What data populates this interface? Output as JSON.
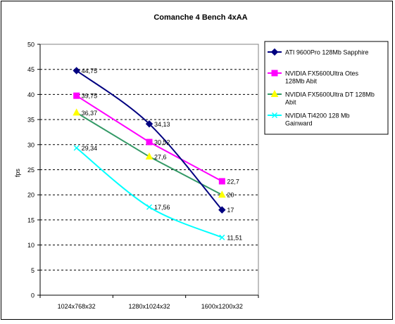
{
  "chart_data": {
    "type": "line",
    "title": "Comanche 4 Bench 4xAA",
    "ylabel": "fps",
    "xlabel": "",
    "categories": [
      "1024x768x32",
      "1280x1024x32",
      "1600x1200x32"
    ],
    "ylim": [
      0,
      50
    ],
    "yticks": [
      "0",
      "5",
      "10",
      "15",
      "20",
      "25",
      "30",
      "35",
      "40",
      "45",
      "50"
    ],
    "grid": "horizontal dashed",
    "legend_position": "right",
    "series": [
      {
        "name": "ATI 9600Pro 128Mb Sapphire",
        "values": [
          44.75,
          34.13,
          17
        ],
        "labels": [
          "44,75",
          "34,13",
          "17"
        ],
        "color": "#000080",
        "marker": "diamond",
        "smooth": true
      },
      {
        "name": "NVIDIA FX5600Ultra Otes 128Mb Abit",
        "values": [
          39.75,
          30.52,
          22.7
        ],
        "labels": [
          "39,75",
          "30,52",
          "22,7"
        ],
        "color": "#ff00ff",
        "marker": "square",
        "smooth": false
      },
      {
        "name": "NVIDIA FX5600Ultra DT 128Mb Abit",
        "values": [
          36.37,
          27.6,
          20
        ],
        "labels": [
          "36,37",
          "27,6",
          "20"
        ],
        "color": "#339966",
        "marker": "triangle",
        "marker_color": "#ffff00",
        "smooth": false
      },
      {
        "name": "NVIDIA Ti4200 128 Mb Gainward",
        "values": [
          29.34,
          17.56,
          11.51
        ],
        "labels": [
          "29,34",
          "17,56",
          "11,51"
        ],
        "color": "#00ffff",
        "marker": "x",
        "smooth": true
      }
    ]
  }
}
